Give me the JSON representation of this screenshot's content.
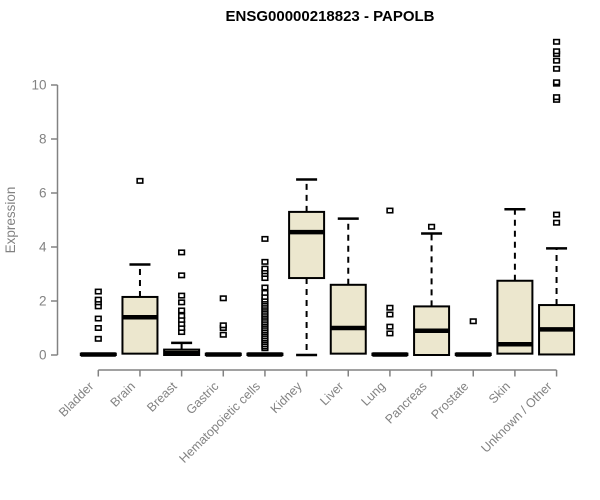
{
  "page": {
    "background": "#ffffff"
  },
  "chart_data": {
    "type": "boxplot",
    "title": "ENSG00000218823 - PAPOLB",
    "xlabel": "",
    "ylabel": "Expression",
    "ylim": [
      0,
      11.8
    ],
    "yticks": [
      0,
      2,
      4,
      6,
      8,
      10
    ],
    "grid": false,
    "legend": "none",
    "colors": {
      "box_fill": "#ECE7CE",
      "box_stroke": "#000000",
      "median": "#000000",
      "axis": "#828282",
      "tick_text": "#828282",
      "title_text": "#000000",
      "outlier_stroke": "#000000",
      "outlier_fill": "#ffffff"
    },
    "categories": [
      "Bladder",
      "Brain",
      "Breast",
      "Gastric",
      "Hematopoietic cells",
      "Kidney",
      "Liver",
      "Lung",
      "Pancreas",
      "Prostate",
      "Skin",
      "Unknown / Other"
    ],
    "series": [
      {
        "category": "Bladder",
        "whisker_low": 0,
        "q1": 0,
        "median": 0.02,
        "q3": 0.05,
        "whisker_high": 0.05,
        "outliers": [
          0.6,
          1.0,
          1.35,
          1.8,
          1.95,
          2.05,
          2.35
        ]
      },
      {
        "category": "Brain",
        "whisker_low": 0,
        "q1": 0.05,
        "median": 1.4,
        "q3": 2.15,
        "whisker_high": 3.35,
        "outliers": [
          6.45
        ]
      },
      {
        "category": "Breast",
        "whisker_low": 0,
        "q1": 0,
        "median": 0.07,
        "q3": 0.2,
        "whisker_high": 0.45,
        "outliers": [
          0.85,
          1.0,
          1.15,
          1.3,
          1.45,
          1.65,
          1.95,
          2.2,
          2.95,
          3.8
        ]
      },
      {
        "category": "Gastric",
        "whisker_low": 0,
        "q1": 0,
        "median": 0.02,
        "q3": 0.05,
        "whisker_high": 0.05,
        "outliers": [
          0.75,
          1.0,
          1.1,
          2.1
        ]
      },
      {
        "category": "Hematopoietic cells",
        "whisker_low": 0,
        "q1": 0,
        "median": 0.02,
        "q3": 0.05,
        "whisker_high": 0.05,
        "outliers": [
          0.25,
          0.32,
          0.4,
          0.48,
          0.55,
          0.62,
          0.7,
          0.78,
          0.85,
          0.92,
          1.0,
          1.08,
          1.15,
          1.22,
          1.3,
          1.38,
          1.45,
          1.52,
          1.6,
          1.68,
          1.75,
          1.82,
          1.9,
          1.98,
          2.05,
          2.15,
          2.3,
          2.5,
          2.85,
          3.0,
          3.1,
          3.2,
          3.45,
          4.3
        ]
      },
      {
        "category": "Kidney",
        "whisker_low": 0,
        "q1": 2.85,
        "median": 4.55,
        "q3": 5.3,
        "whisker_high": 6.5,
        "outliers": []
      },
      {
        "category": "Liver",
        "whisker_low": 0.05,
        "q1": 0.05,
        "median": 1.0,
        "q3": 2.6,
        "whisker_high": 5.05,
        "outliers": []
      },
      {
        "category": "Lung",
        "whisker_low": 0,
        "q1": 0,
        "median": 0.02,
        "q3": 0.05,
        "whisker_high": 0.05,
        "outliers": [
          0.8,
          1.05,
          1.5,
          1.75,
          5.35
        ]
      },
      {
        "category": "Pancreas",
        "whisker_low": 0,
        "q1": 0,
        "median": 0.9,
        "q3": 1.8,
        "whisker_high": 4.5,
        "outliers": [
          4.75
        ]
      },
      {
        "category": "Prostate",
        "whisker_low": 0,
        "q1": 0,
        "median": 0.02,
        "q3": 0.05,
        "whisker_high": 0.05,
        "outliers": [
          1.25
        ]
      },
      {
        "category": "Skin",
        "whisker_low": 0.05,
        "q1": 0.05,
        "median": 0.4,
        "q3": 2.75,
        "whisker_high": 5.4,
        "outliers": []
      },
      {
        "category": "Unknown / Other",
        "whisker_low": 0,
        "q1": 0.02,
        "median": 0.95,
        "q3": 1.85,
        "whisker_high": 3.95,
        "outliers": [
          4.9,
          5.2,
          9.45,
          9.55,
          10.05,
          10.1,
          10.6,
          10.9,
          11.15,
          11.25,
          11.6
        ]
      }
    ]
  }
}
